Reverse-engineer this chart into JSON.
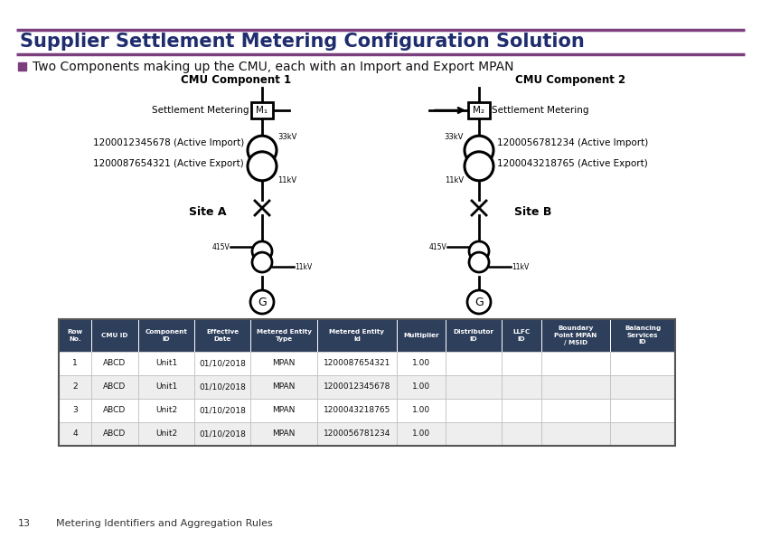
{
  "title": "Supplier Settlement Metering Configuration Solution",
  "title_color": "#1f2d6e",
  "title_bar_color": "#7b3f7e",
  "bullet_color": "#7b3f7e",
  "bullet_text": "Two Components making up the CMU, each with an Import and Export MPAN",
  "bg_color": "#ffffff",
  "comp1_label": "CMU Component 1",
  "comp2_label": "CMU Component 2",
  "site_a": "Site A",
  "site_b": "Site B",
  "settle_metering": "Settlement Metering",
  "m1": "M₁",
  "m2": "M₂",
  "import1": "1200012345678 (Active Import)",
  "export1": "1200087654321 (Active Export)",
  "import2": "1200056781234 (Active Import)",
  "export2": "1200043218765 (Active Export)",
  "kv33": "33kV",
  "kv11": "11kV",
  "kv415": "415V",
  "kv11b": "11kV",
  "table_header_bg": "#2e3f5c",
  "table_header_color": "#ffffff",
  "table_row_bg1": "#ffffff",
  "table_row_bg2": "#eeeeee",
  "table_headers": [
    "Row\nNo.",
    "CMU ID",
    "Component\nID",
    "Effective\nDate",
    "Metered Entity\nType",
    "Metered Entity\nId",
    "Multiplier",
    "Distributor\nID",
    "LLFC\nID",
    "Boundary\nPoint MPAN\n/ MSID",
    "Balancing\nServices\nID"
  ],
  "table_rows": [
    [
      "1",
      "ABCD",
      "Unit1",
      "01/10/2018",
      "MPAN",
      "1200087654321",
      "1.00",
      "",
      "",
      "",
      ""
    ],
    [
      "2",
      "ABCD",
      "Unit1",
      "01/10/2018",
      "MPAN",
      "1200012345678",
      "1.00",
      "",
      "",
      "",
      ""
    ],
    [
      "3",
      "ABCD",
      "Unit2",
      "01/10/2018",
      "MPAN",
      "1200043218765",
      "1.00",
      "",
      "",
      "",
      ""
    ],
    [
      "4",
      "ABCD",
      "Unit2",
      "01/10/2018",
      "MPAN",
      "1200056781234",
      "1.00",
      "",
      "",
      "",
      ""
    ]
  ],
  "footer_num": "13",
  "footer_text": "Metering Identifiers and Aggregation Rules"
}
